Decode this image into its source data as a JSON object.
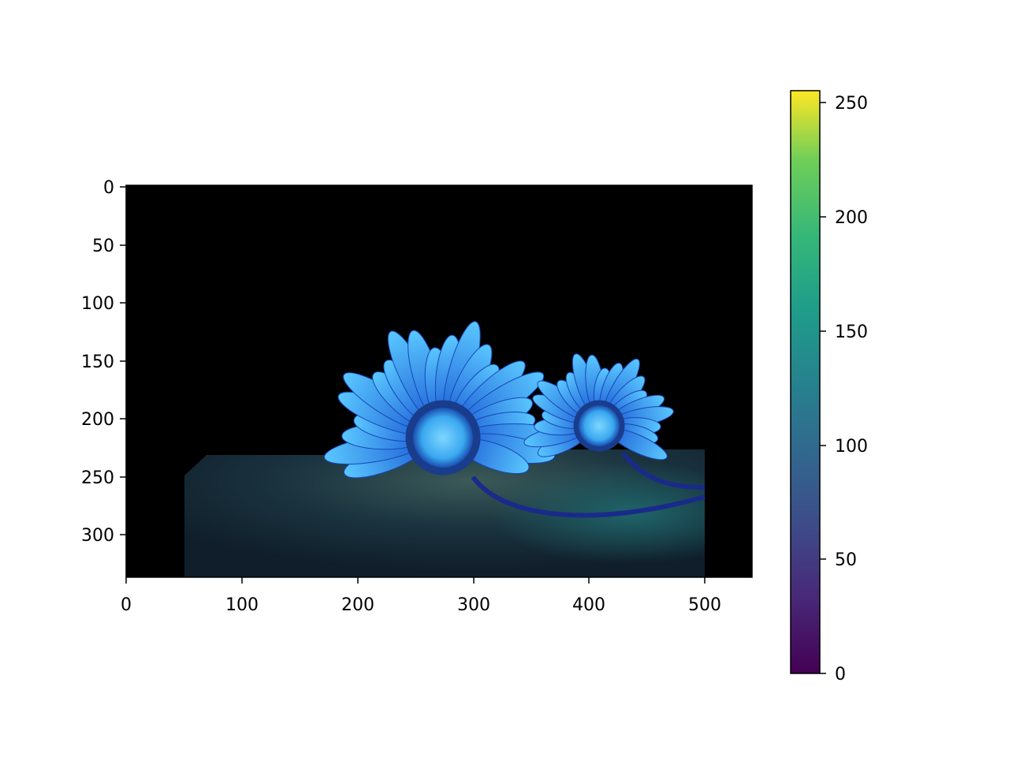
{
  "image_axes": {
    "x_ticks": [
      "0",
      "100",
      "200",
      "300",
      "400",
      "500"
    ],
    "y_ticks": [
      "0",
      "50",
      "100",
      "150",
      "200",
      "250",
      "300"
    ],
    "x_range": [
      0,
      540
    ],
    "y_range": [
      338,
      0
    ]
  },
  "colorbar": {
    "colormap": "viridis",
    "range": [
      0,
      255
    ],
    "ticks": [
      "0",
      "50",
      "100",
      "150",
      "200",
      "250"
    ]
  },
  "scene": {
    "background_color": "#000000",
    "petal_color": "#2f9dff",
    "center_color": "#3fb6ff",
    "ground_color": "#1c3a44",
    "stem_color": "#1a2a8a"
  }
}
